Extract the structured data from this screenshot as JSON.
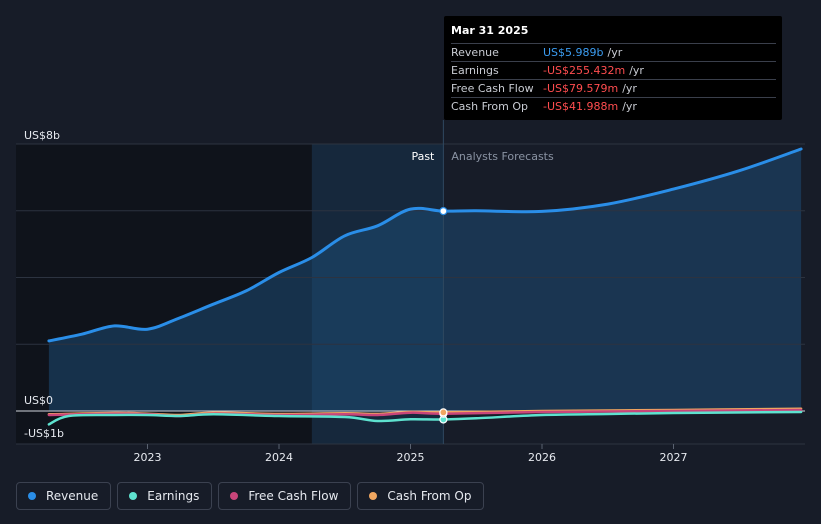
{
  "tooltip": {
    "date": "Mar 31 2025",
    "rows": [
      {
        "label": "Revenue",
        "value": "US$5.989b",
        "unit": "/yr",
        "color": "#3b9cf0"
      },
      {
        "label": "Earnings",
        "value": "-US$255.432m",
        "unit": "/yr",
        "color": "#ff4d4f"
      },
      {
        "label": "Free Cash Flow",
        "value": "-US$79.579m",
        "unit": "/yr",
        "color": "#ff4d4f"
      },
      {
        "label": "Cash From Op",
        "value": "-US$41.988m",
        "unit": "/yr",
        "color": "#ff4d4f"
      }
    ]
  },
  "legend": [
    {
      "label": "Revenue",
      "color": "#2a8ee8"
    },
    {
      "label": "Earnings",
      "color": "#5ee2cf"
    },
    {
      "label": "Free Cash Flow",
      "color": "#c8457a"
    },
    {
      "label": "Cash From Op",
      "color": "#f0a660"
    }
  ],
  "chart_data": {
    "type": "line",
    "y_tick_labels": [
      "US$8b",
      "US$0",
      "-US$1b"
    ],
    "x_tick_labels": [
      "2023",
      "2024",
      "2025",
      "2026",
      "2027"
    ],
    "ylim": [
      -1,
      8
    ],
    "divider_labels": {
      "past": "Past",
      "forecast": "Analysts Forecasts"
    },
    "divider_date": 2025.25,
    "highlight_start": 2024.25,
    "grid": true,
    "series": [
      {
        "name": "Revenue",
        "color": "#2a8ee8",
        "points": [
          [
            2022.25,
            2.1
          ],
          [
            2022.5,
            2.3
          ],
          [
            2022.75,
            2.55
          ],
          [
            2023.0,
            2.45
          ],
          [
            2023.25,
            2.8
          ],
          [
            2023.5,
            3.2
          ],
          [
            2023.75,
            3.6
          ],
          [
            2024.0,
            4.15
          ],
          [
            2024.25,
            4.6
          ],
          [
            2024.5,
            5.25
          ],
          [
            2024.75,
            5.55
          ],
          [
            2025.0,
            6.05
          ],
          [
            2025.25,
            5.989
          ],
          [
            2025.5,
            6.0
          ],
          [
            2026.0,
            5.98
          ],
          [
            2026.5,
            6.2
          ],
          [
            2027.0,
            6.65
          ],
          [
            2027.5,
            7.2
          ],
          [
            2027.97,
            7.85
          ]
        ]
      },
      {
        "name": "Earnings",
        "color": "#5ee2cf",
        "points": [
          [
            2022.25,
            -0.4
          ],
          [
            2022.4,
            -0.15
          ],
          [
            2022.75,
            -0.12
          ],
          [
            2023.0,
            -0.12
          ],
          [
            2023.25,
            -0.15
          ],
          [
            2023.5,
            -0.1
          ],
          [
            2024.0,
            -0.15
          ],
          [
            2024.5,
            -0.18
          ],
          [
            2024.75,
            -0.3
          ],
          [
            2025.0,
            -0.25
          ],
          [
            2025.25,
            -0.255
          ],
          [
            2025.5,
            -0.22
          ],
          [
            2026.0,
            -0.12
          ],
          [
            2026.5,
            -0.09
          ],
          [
            2027.0,
            -0.06
          ],
          [
            2027.97,
            -0.03
          ]
        ]
      },
      {
        "name": "Free Cash Flow",
        "color": "#c8457a",
        "points": [
          [
            2022.25,
            -0.12
          ],
          [
            2022.75,
            -0.08
          ],
          [
            2023.0,
            -0.1
          ],
          [
            2023.25,
            -0.15
          ],
          [
            2023.5,
            -0.08
          ],
          [
            2024.0,
            -0.12
          ],
          [
            2024.5,
            -0.1
          ],
          [
            2024.75,
            -0.12
          ],
          [
            2025.0,
            -0.05
          ],
          [
            2025.25,
            -0.08
          ],
          [
            2026.0,
            -0.03
          ],
          [
            2027.0,
            0.0
          ],
          [
            2027.97,
            0.03
          ]
        ]
      },
      {
        "name": "Cash From Op",
        "color": "#f0a660",
        "points": [
          [
            2022.25,
            -0.1
          ],
          [
            2022.75,
            -0.06
          ],
          [
            2023.0,
            -0.08
          ],
          [
            2023.25,
            -0.12
          ],
          [
            2023.5,
            -0.05
          ],
          [
            2024.0,
            -0.09
          ],
          [
            2024.5,
            -0.07
          ],
          [
            2024.75,
            -0.09
          ],
          [
            2025.0,
            -0.03
          ],
          [
            2025.25,
            -0.042
          ],
          [
            2026.0,
            0.0
          ],
          [
            2027.0,
            0.03
          ],
          [
            2027.97,
            0.07
          ]
        ]
      }
    ]
  }
}
